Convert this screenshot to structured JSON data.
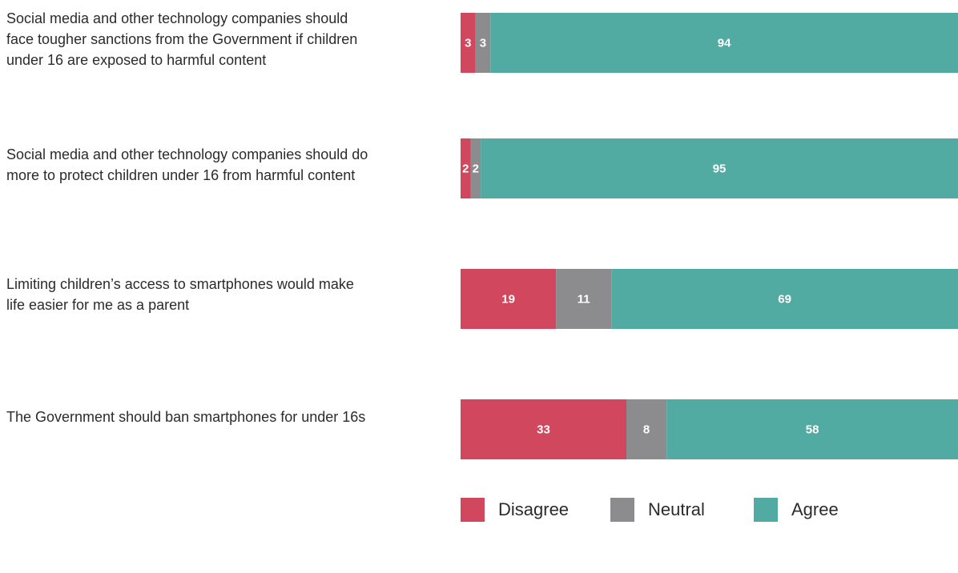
{
  "chart_data": {
    "type": "bar",
    "orientation": "horizontal",
    "stacked": true,
    "categories": [
      "Social media and other technology companies should face tougher sanctions from the Government if children under 16 are exposed to harmful content",
      "Social media and other technology companies should do more to protect children under 16 from harmful content",
      "Limiting children’s access to smartphones would make life easier for me as a parent",
      "The Government should ban smartphones for under 16s"
    ],
    "label_lines": [
      [
        "Social media and other technology companies should",
        "face tougher sanctions from the Government if children",
        "under 16 are exposed to harmful content"
      ],
      [
        "Social media and other technology companies should do",
        "more to protect children under 16 from harmful content"
      ],
      [
        "Limiting children’s access to smartphones would make",
        "life easier for me as a parent"
      ],
      [
        "The Government should ban smartphones for under 16s"
      ]
    ],
    "series": [
      {
        "name": "Disagree",
        "color": "#d1475d",
        "values": [
          3,
          2,
          19,
          33
        ]
      },
      {
        "name": "Neutral",
        "color": "#8c8c8e",
        "values": [
          3,
          2,
          11,
          8
        ]
      },
      {
        "name": "Agree",
        "color": "#52aba3",
        "values": [
          94,
          95,
          69,
          58
        ]
      }
    ],
    "xlim": [
      0,
      100
    ],
    "grid": false,
    "legend_position": "bottom"
  }
}
